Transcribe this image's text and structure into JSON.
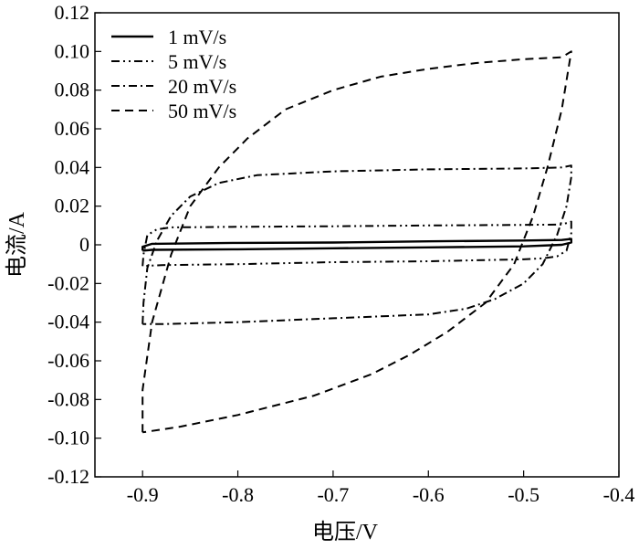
{
  "chart_data": {
    "type": "line",
    "title": "",
    "xlabel": "电压/V",
    "ylabel": "电流/A",
    "xlim": [
      -0.95,
      -0.4
    ],
    "ylim": [
      -0.12,
      0.12
    ],
    "x_ticks": [
      -0.9,
      -0.8,
      -0.7,
      -0.6,
      -0.5,
      -0.4
    ],
    "x_tick_labels": [
      "-0.9",
      "-0.8",
      "-0.7",
      "-0.6",
      "-0.5",
      "-0.4"
    ],
    "y_ticks": [
      0.12,
      0.1,
      0.08,
      0.06,
      0.04,
      0.02,
      0,
      -0.02,
      -0.04,
      -0.06,
      -0.08,
      -0.1,
      -0.12
    ],
    "y_tick_labels": [
      "0.12",
      "0.10",
      "0.08",
      "0.06",
      "0.04",
      "0.02",
      "0",
      "-0.02",
      "-0.04",
      "-0.06",
      "-0.08",
      "-0.10",
      "-0.12"
    ],
    "grid": false,
    "legend_position": "top-left",
    "series": [
      {
        "name": "1 mV/s",
        "dash": "solid",
        "color": "#000000",
        "points": [
          [
            -0.9,
            -0.003
          ],
          [
            -0.9,
            -0.001
          ],
          [
            -0.89,
            0.0005
          ],
          [
            -0.8,
            0.001
          ],
          [
            -0.7,
            0.0012
          ],
          [
            -0.6,
            0.0018
          ],
          [
            -0.5,
            0.0022
          ],
          [
            -0.46,
            0.0025
          ],
          [
            -0.45,
            0.003
          ],
          [
            -0.45,
            0.0012
          ],
          [
            -0.46,
            0.0
          ],
          [
            -0.5,
            -0.0008
          ],
          [
            -0.6,
            -0.0013
          ],
          [
            -0.7,
            -0.0018
          ],
          [
            -0.8,
            -0.0023
          ],
          [
            -0.89,
            -0.0026
          ],
          [
            -0.9,
            -0.003
          ]
        ]
      },
      {
        "name": "5 mV/s",
        "dash": "dash-dot-dot",
        "color": "#000000",
        "points": [
          [
            -0.9,
            -0.011
          ],
          [
            -0.899,
            -0.005
          ],
          [
            -0.895,
            0.005
          ],
          [
            -0.885,
            0.008
          ],
          [
            -0.87,
            0.009
          ],
          [
            -0.8,
            0.0093
          ],
          [
            -0.7,
            0.0096
          ],
          [
            -0.6,
            0.01
          ],
          [
            -0.5,
            0.0103
          ],
          [
            -0.46,
            0.0105
          ],
          [
            -0.45,
            0.012
          ],
          [
            -0.45,
            0.006
          ],
          [
            -0.455,
            -0.003
          ],
          [
            -0.465,
            -0.006
          ],
          [
            -0.48,
            -0.007
          ],
          [
            -0.5,
            -0.0075
          ],
          [
            -0.6,
            -0.0085
          ],
          [
            -0.7,
            -0.009
          ],
          [
            -0.8,
            -0.01
          ],
          [
            -0.88,
            -0.0105
          ],
          [
            -0.9,
            -0.011
          ]
        ]
      },
      {
        "name": "20 mV/s",
        "dash": "dash-dot",
        "color": "#000000",
        "points": [
          [
            -0.9,
            -0.041
          ],
          [
            -0.899,
            -0.03
          ],
          [
            -0.895,
            -0.012
          ],
          [
            -0.885,
            0.002
          ],
          [
            -0.87,
            0.015
          ],
          [
            -0.85,
            0.025
          ],
          [
            -0.82,
            0.032
          ],
          [
            -0.78,
            0.036
          ],
          [
            -0.7,
            0.038
          ],
          [
            -0.6,
            0.039
          ],
          [
            -0.5,
            0.0395
          ],
          [
            -0.46,
            0.04
          ],
          [
            -0.45,
            0.041
          ],
          [
            -0.45,
            0.035
          ],
          [
            -0.455,
            0.02
          ],
          [
            -0.465,
            0.005
          ],
          [
            -0.48,
            -0.01
          ],
          [
            -0.5,
            -0.02
          ],
          [
            -0.53,
            -0.028
          ],
          [
            -0.56,
            -0.033
          ],
          [
            -0.6,
            -0.036
          ],
          [
            -0.7,
            -0.038
          ],
          [
            -0.8,
            -0.04
          ],
          [
            -0.88,
            -0.041
          ],
          [
            -0.9,
            -0.041
          ]
        ]
      },
      {
        "name": "50 mV/s",
        "dash": "dash",
        "color": "#000000",
        "points": [
          [
            -0.9,
            -0.097
          ],
          [
            -0.9,
            -0.075
          ],
          [
            -0.89,
            -0.04
          ],
          [
            -0.87,
            -0.005
          ],
          [
            -0.85,
            0.02
          ],
          [
            -0.82,
            0.04
          ],
          [
            -0.79,
            0.055
          ],
          [
            -0.75,
            0.07
          ],
          [
            -0.7,
            0.08
          ],
          [
            -0.65,
            0.087
          ],
          [
            -0.6,
            0.091
          ],
          [
            -0.55,
            0.094
          ],
          [
            -0.5,
            0.096
          ],
          [
            -0.46,
            0.097
          ],
          [
            -0.45,
            0.1
          ],
          [
            -0.46,
            0.07
          ],
          [
            -0.475,
            0.04
          ],
          [
            -0.49,
            0.015
          ],
          [
            -0.51,
            -0.01
          ],
          [
            -0.54,
            -0.03
          ],
          [
            -0.58,
            -0.045
          ],
          [
            -0.62,
            -0.057
          ],
          [
            -0.66,
            -0.067
          ],
          [
            -0.72,
            -0.078
          ],
          [
            -0.8,
            -0.088
          ],
          [
            -0.86,
            -0.094
          ],
          [
            -0.9,
            -0.097
          ]
        ]
      }
    ]
  }
}
